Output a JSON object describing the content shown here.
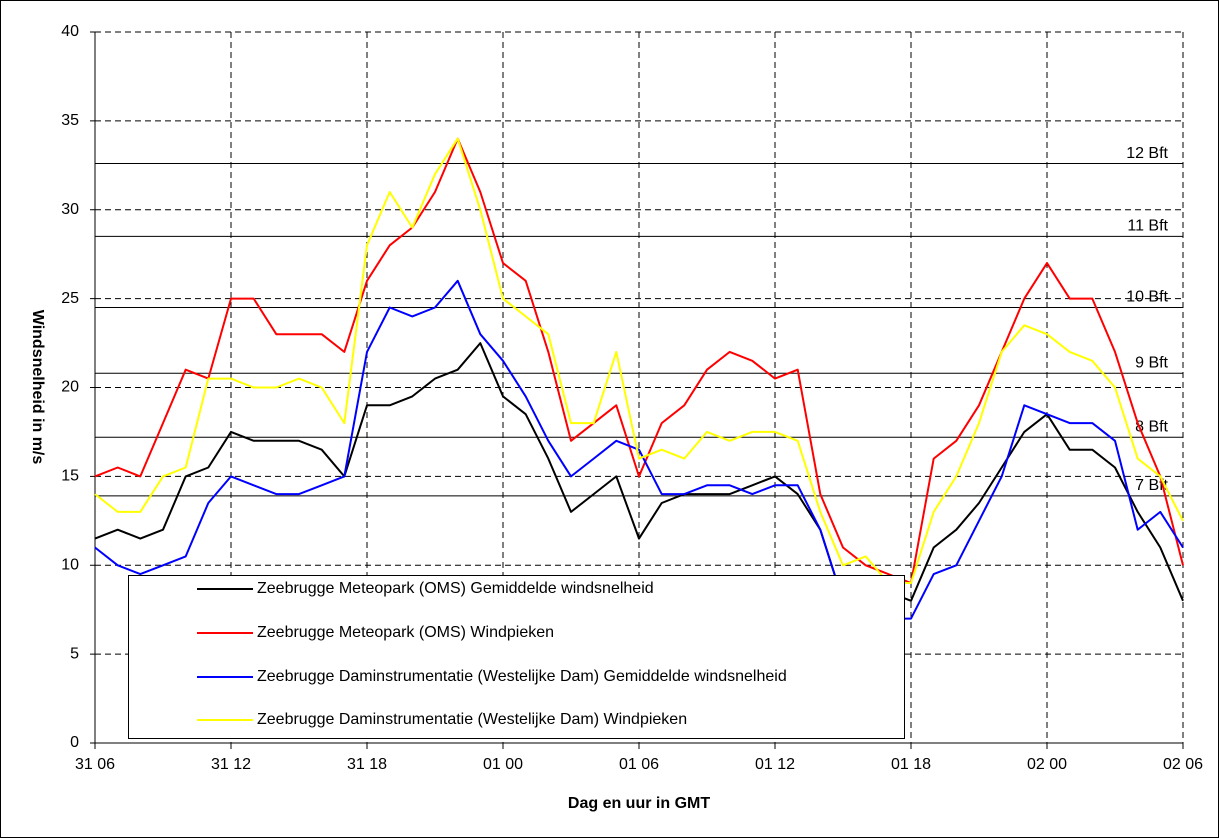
{
  "chart_data": {
    "type": "line",
    "xlabel": "Dag en uur in GMT",
    "ylabel": "Windsnelheid in m/s",
    "categories": [
      "31 06",
      null,
      null,
      null,
      null,
      null,
      "31 12",
      null,
      null,
      null,
      null,
      null,
      "31 18",
      null,
      null,
      null,
      null,
      null,
      "01 00",
      null,
      null,
      null,
      null,
      null,
      "01 06",
      null,
      null,
      null,
      null,
      null,
      "01 12",
      null,
      null,
      null,
      null,
      null,
      "01 18",
      null,
      null,
      null,
      null,
      null,
      "02 00",
      null,
      null,
      null,
      null,
      null,
      "02 06"
    ],
    "ylim": [
      0,
      40
    ],
    "yticks": [
      0,
      5,
      10,
      15,
      20,
      25,
      30,
      35,
      40
    ],
    "grid": true,
    "reference_lines": [
      {
        "value": 32.6,
        "label": "12 Bft"
      },
      {
        "value": 28.5,
        "label": "11 Bft"
      },
      {
        "value": 24.5,
        "label": "10 Bft"
      },
      {
        "value": 20.8,
        "label": "9 Bft"
      },
      {
        "value": 17.2,
        "label": "8 Bft"
      },
      {
        "value": 13.9,
        "label": "7 Bft"
      }
    ],
    "series": [
      {
        "name": "Zeebrugge Meteopark (OMS) Gemiddelde windsnelheid",
        "color": "#000000",
        "values": [
          11.5,
          12,
          11.5,
          12,
          15,
          15.5,
          17.5,
          17,
          17,
          17,
          16.5,
          15,
          19,
          19,
          19.5,
          20.5,
          21,
          22.5,
          19.5,
          18.5,
          16,
          13,
          14,
          15,
          11.5,
          13.5,
          14,
          14,
          14,
          14.5,
          15,
          14,
          12,
          8,
          8,
          8.5,
          8,
          11,
          12,
          13.5,
          15.5,
          17.5,
          18.5,
          16.5,
          16.5,
          15.5,
          13,
          11,
          8
        ]
      },
      {
        "name": "Zeebrugge Meteopark (OMS) Windpieken",
        "color": "#ff0000",
        "values": [
          15,
          15.5,
          15,
          18,
          21,
          20.5,
          25,
          25,
          23,
          23,
          23,
          22,
          26,
          28,
          29,
          31,
          34,
          31,
          27,
          26,
          22,
          17,
          18,
          19,
          15,
          18,
          19,
          21,
          22,
          21.5,
          20.5,
          21,
          14,
          11,
          10,
          9.5,
          9,
          16,
          17,
          19,
          22,
          25,
          27,
          25,
          25,
          22,
          18,
          15,
          10
        ]
      },
      {
        "name": "Zeebrugge Daminstrumentatie (Westelijke Dam) Gemiddelde windsnelheid",
        "color": "#0000ff",
        "values": [
          11,
          10,
          9.5,
          10,
          10.5,
          13.5,
          15,
          14.5,
          14,
          14,
          14.5,
          15,
          22,
          24.5,
          24,
          24.5,
          26,
          23,
          21.5,
          19.5,
          17,
          15,
          16,
          17,
          16.5,
          14,
          14,
          14.5,
          14.5,
          14,
          14.5,
          14.5,
          12,
          8,
          7.5,
          7,
          7,
          9.5,
          10,
          12.5,
          15,
          19,
          18.5,
          18,
          18,
          17,
          12,
          13,
          11
        ]
      },
      {
        "name": "Zeebrugge Daminstrumentatie (Westelijke Dam) Windpieken",
        "color": "#ffff00",
        "values": [
          14,
          13,
          13,
          15,
          15.5,
          20.5,
          20.5,
          20,
          20,
          20.5,
          20,
          18,
          28,
          31,
          29,
          32,
          34,
          30,
          25,
          24,
          23,
          18,
          18,
          22,
          16,
          16.5,
          16,
          17.5,
          17,
          17.5,
          17.5,
          17,
          13,
          10,
          10.5,
          9,
          9,
          13,
          15,
          18,
          22,
          23.5,
          23,
          22,
          21.5,
          20,
          16,
          15,
          12.5
        ]
      }
    ]
  }
}
